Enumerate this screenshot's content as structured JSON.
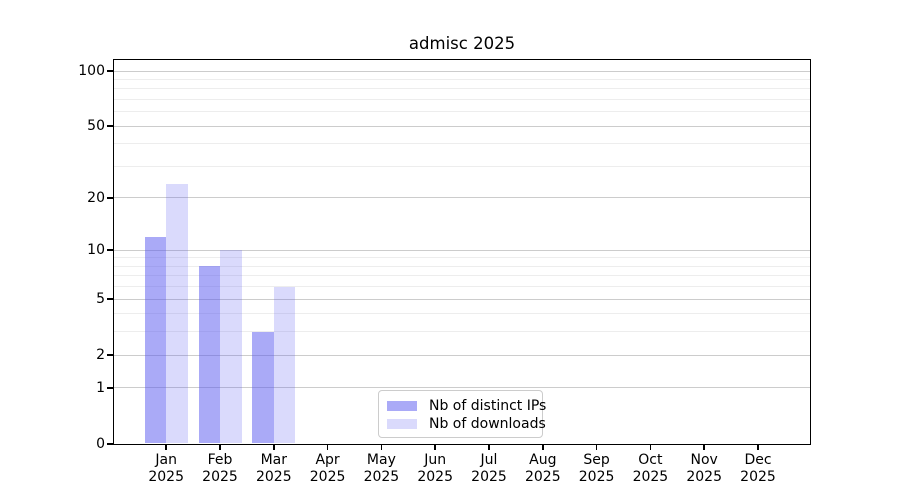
{
  "chart_data": {
    "type": "bar",
    "title": "admisc 2025",
    "x_ticks": [
      {
        "month": "Jan",
        "year": "2025"
      },
      {
        "month": "Feb",
        "year": "2025"
      },
      {
        "month": "Mar",
        "year": "2025"
      },
      {
        "month": "Apr",
        "year": "2025"
      },
      {
        "month": "May",
        "year": "2025"
      },
      {
        "month": "Jun",
        "year": "2025"
      },
      {
        "month": "Jul",
        "year": "2025"
      },
      {
        "month": "Aug",
        "year": "2025"
      },
      {
        "month": "Sep",
        "year": "2025"
      },
      {
        "month": "Oct",
        "year": "2025"
      },
      {
        "month": "Nov",
        "year": "2025"
      },
      {
        "month": "Dec",
        "year": "2025"
      }
    ],
    "series": [
      {
        "name": "Nb of distinct IPs",
        "color": "rgba(85,85,240,0.50)",
        "values": [
          12,
          8,
          3,
          0,
          0,
          0,
          0,
          0,
          0,
          0,
          0,
          0
        ]
      },
      {
        "name": "Nb of downloads",
        "color": "rgba(85,85,240,0.22)",
        "values": [
          24,
          10,
          6,
          0,
          0,
          0,
          0,
          0,
          0,
          0,
          0,
          0
        ]
      }
    ],
    "y_axis": {
      "scale": "log1p",
      "major_ticks": [
        0,
        1,
        2,
        5,
        10,
        20,
        50,
        100
      ],
      "minor_ticks": [
        3,
        4,
        6,
        7,
        8,
        9,
        30,
        40,
        60,
        70,
        80,
        90
      ],
      "ylim": [
        0,
        115
      ]
    },
    "grid": {
      "major_color": "#cccccc",
      "minor_color": "#ededed"
    },
    "legend_position": "bottom-center"
  }
}
